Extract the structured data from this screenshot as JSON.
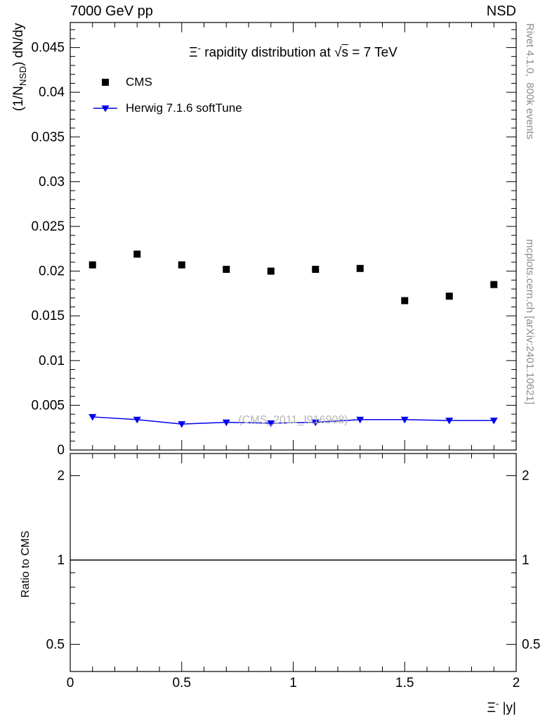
{
  "header": {
    "left": "7000 GeV pp",
    "right": "NSD"
  },
  "side_texts": {
    "top_right": "Rivet 4.1.0,  800k events",
    "bottom_right": "mcplots.cern.ch [arXiv:2401.10621]"
  },
  "watermark": "(CMS_2011_I916908)",
  "title": {
    "xi": "Ξ",
    "xi_sup": "-",
    "mid": " rapidity distribution at ",
    "sqrt": "√",
    "overline": "s",
    "post": " = 7 TeV"
  },
  "axes": {
    "y_title": {
      "pre": "(1/N",
      "sub": "NSD",
      "post": ") dN/dy"
    },
    "x_title": {
      "pre": "Ξ",
      "sup": "-",
      "post": " |y|"
    },
    "ratio_title": "Ratio to CMS"
  },
  "legend": [
    {
      "label": "CMS",
      "marker": "square",
      "color": "#000000"
    },
    {
      "label": "Herwig 7.1.6 softTune",
      "marker": "triangle-down",
      "color": "#0000ee",
      "line": true
    }
  ],
  "colors": {
    "frame": "#000000",
    "gray_text": "#8c8c8c",
    "watermark": "#b4b4b4"
  },
  "chart_data": {
    "type": "scatter",
    "title": "Ξ⁻ rapidity distribution at √s = 7 TeV",
    "xlabel": "Ξ⁻ |y|",
    "ylabel": "(1/N_NSD) dN/dy",
    "x": [
      0.1,
      0.3,
      0.5,
      0.7,
      0.9,
      1.1,
      1.3,
      1.5,
      1.7,
      1.9
    ],
    "series": [
      {
        "name": "CMS",
        "marker": "square",
        "color": "#000000",
        "line": false,
        "values": [
          0.0207,
          0.0219,
          0.0207,
          0.0202,
          0.02,
          0.0202,
          0.0203,
          0.0167,
          0.0172,
          0.0185
        ]
      },
      {
        "name": "Herwig 7.1.6 softTune",
        "marker": "triangle-down",
        "color": "#0000ee",
        "line": true,
        "values": [
          0.0037,
          0.0034,
          0.0029,
          0.0031,
          0.003,
          0.0031,
          0.0034,
          0.0034,
          0.0033,
          0.0033
        ]
      }
    ],
    "x_axis": {
      "lim": [
        0,
        2
      ],
      "major_ticks": [
        0,
        0.5,
        1,
        1.5,
        2
      ],
      "labels": [
        "0",
        "0.5",
        "1",
        "1.5",
        "2"
      ],
      "minor_step": 0.1
    },
    "y_axis": {
      "lim": [
        0,
        0.0478
      ],
      "major_ticks": [
        0,
        0.005,
        0.01,
        0.015,
        0.02,
        0.025,
        0.03,
        0.035,
        0.04,
        0.045
      ],
      "labels": [
        "0",
        "0.005",
        "0.01",
        "0.015",
        "0.02",
        "0.025",
        "0.03",
        "0.035",
        "0.04",
        "0.045"
      ],
      "minor_step": 0.001
    },
    "ratio_panel": {
      "ylabel": "Ratio to CMS",
      "scale": "log",
      "lim": [
        0.4,
        2.4
      ],
      "major_ticks": [
        0.5,
        1,
        2
      ],
      "labels": [
        "0.5",
        "1",
        "2"
      ],
      "minor_ticks": [
        0.4,
        0.6,
        0.7,
        0.8,
        0.9
      ],
      "reference_line": 1
    },
    "legend_position": "top-left",
    "grid": false
  }
}
